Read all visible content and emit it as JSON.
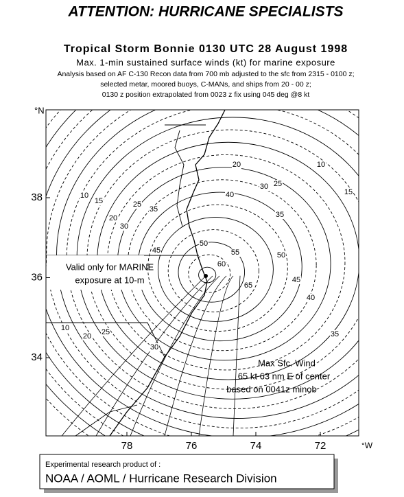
{
  "header": {
    "title": "ATTENTION: HURRICANE SPECIALISTS",
    "subtitle": "Tropical Storm Bonnie 0130 UTC 28 August 1998",
    "caption": "Max. 1-min sustained surface winds (kt) for marine exposure",
    "notes": [
      "Analysis based on  AF C-130 Recon data from 700 mb adjusted to the sfc from 2315 - 0100 z;",
      "selected metar, moored  buoys, C-MANs, and ships from 20 - 00 z;",
      "0130 z position extrapolated from 0023 z fix using 045 deg @8 kt"
    ]
  },
  "map": {
    "lat_unit": "°N",
    "lon_unit": "°W",
    "latitudes": [
      38,
      36,
      34
    ],
    "longitudes": [
      78,
      76,
      74,
      72
    ],
    "contour_labels": [
      "10",
      "15",
      "20",
      "30",
      "25",
      "35",
      "45",
      "20",
      "10",
      "15",
      "25",
      "30",
      "40",
      "35",
      "50",
      "55",
      "60",
      "50",
      "45",
      "65",
      "40",
      "35",
      "25",
      "30",
      "10",
      "20"
    ],
    "validity_note": [
      "Valid only for MARINE",
      "exposure at 10-m"
    ],
    "max_wind_note": [
      "Max Sfc. Wind",
      "65 kt  63 nm E of center",
      "based on 0041z minob"
    ]
  },
  "footer": {
    "line1": "Experimental research product of :",
    "line2": "NOAA / AOML / Hurricane Research Division"
  }
}
